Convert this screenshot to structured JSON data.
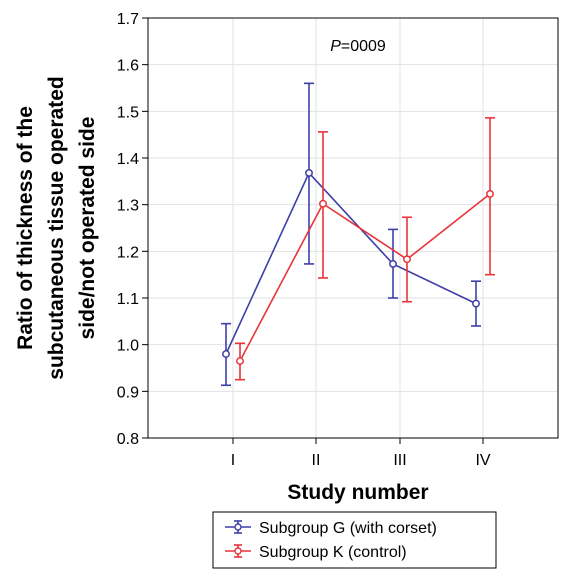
{
  "chart_data": {
    "type": "line",
    "xlabel": "Study number",
    "ylabel_lines": [
      "Ratio of thickness of the",
      "subcutaneous tissue operated",
      "side/not operated side"
    ],
    "categories": [
      "I",
      "II",
      "III",
      "IV"
    ],
    "ylim": [
      0.8,
      1.7
    ],
    "yticks": [
      "0.8",
      "0.9",
      "1.0",
      "1.1",
      "1.2",
      "1.3",
      "1.4",
      "1.5",
      "1.6",
      "1.7"
    ],
    "grid": true,
    "annotation": {
      "prefix": "P",
      "rest": "=0009"
    },
    "legend_position": "bottom-center",
    "series": [
      {
        "name": "Subgroup G (with corset)",
        "color": "#3f3fa8",
        "values": [
          0.98,
          1.368,
          1.173,
          1.088
        ],
        "lower": [
          0.913,
          1.173,
          1.1,
          1.04
        ],
        "upper": [
          1.045,
          1.56,
          1.247,
          1.136
        ]
      },
      {
        "name": "Subgroup K (control)",
        "color": "#e8343a",
        "values": [
          0.965,
          1.302,
          1.183,
          1.323
        ],
        "lower": [
          0.925,
          1.143,
          1.092,
          1.15
        ],
        "upper": [
          1.003,
          1.456,
          1.273,
          1.486
        ]
      }
    ]
  }
}
